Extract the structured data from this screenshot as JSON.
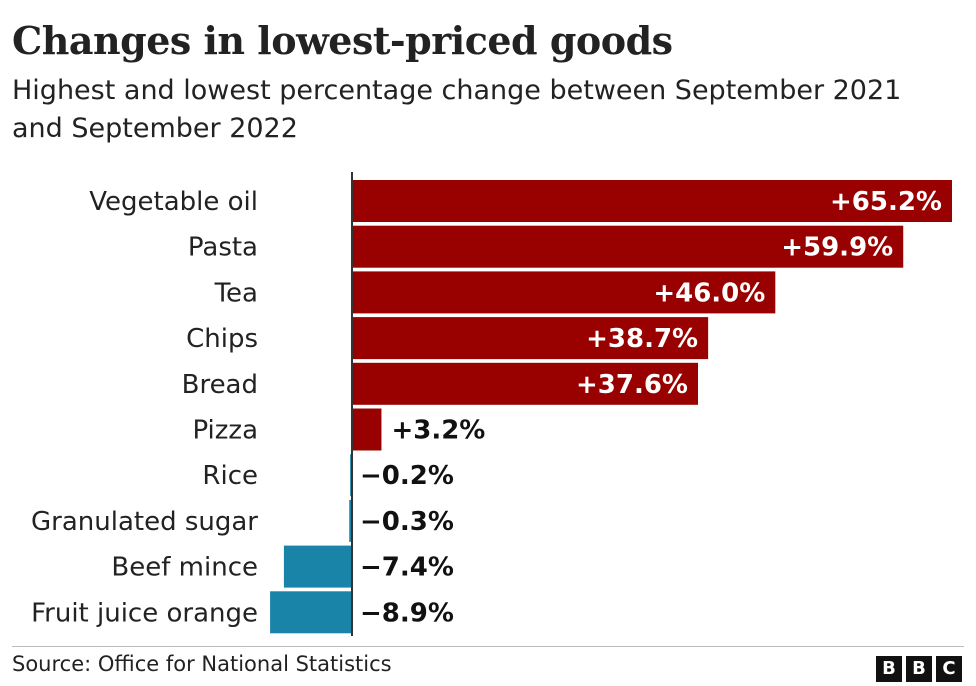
{
  "chart_data": {
    "type": "bar",
    "orientation": "horizontal",
    "title": "Changes in lowest-priced goods",
    "subtitle": "Highest and lowest percentage change between September 2021 and September 2022",
    "categories": [
      "Vegetable oil",
      "Pasta",
      "Tea",
      "Chips",
      "Bread",
      "Pizza",
      "Rice",
      "Granulated sugar",
      "Beef mince",
      "Fruit juice orange"
    ],
    "values": [
      65.2,
      59.9,
      46.0,
      38.7,
      37.6,
      3.2,
      -0.2,
      -0.3,
      -7.4,
      -8.9
    ],
    "value_labels": [
      "+65.2%",
      "+59.9%",
      "+46.0%",
      "+38.7%",
      "+37.6%",
      "+3.2%",
      "−0.2%",
      "−0.3%",
      "−7.4%",
      "−8.9%"
    ],
    "xlim": [
      -9,
      65.5
    ],
    "colors": {
      "positive": "#990000",
      "negative": "#1a83a8"
    },
    "source": "Source: Office for National Statistics",
    "grid": false,
    "legend": "none"
  },
  "footer": {
    "logo_letters": [
      "B",
      "B",
      "C"
    ]
  }
}
